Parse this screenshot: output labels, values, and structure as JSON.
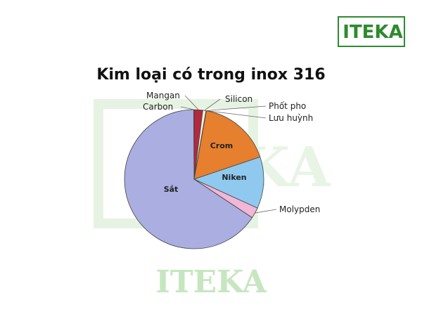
{
  "brand": {
    "logo_text": "ITEKA",
    "logo_color": "#2e8b2e",
    "watermark_text": "ITEKA",
    "watermark_color": "#c6e6c0"
  },
  "chart_data": {
    "type": "pie",
    "title": "Kim loại có trong inox 316",
    "start": "top, clockwise",
    "slices": [
      {
        "label": "Mangan",
        "value": 2.0,
        "color": "#b5283f"
      },
      {
        "label": "Silicon",
        "value": 0.75,
        "color": "#f2f2d8"
      },
      {
        "label": "Phốt pho",
        "value": 0.045,
        "color": "#d9d9a0"
      },
      {
        "label": "Lưu huỳnh",
        "value": 0.03,
        "color": "#c8c8c8"
      },
      {
        "label": "Crom",
        "value": 17.0,
        "color": "#e67f2e"
      },
      {
        "label": "Niken",
        "value": 12.0,
        "color": "#8fc9ef"
      },
      {
        "label": "Molypden",
        "value": 2.5,
        "color": "#f2b6d6"
      },
      {
        "label": "Sắt",
        "value": 65.595,
        "color": "#aaaee0"
      },
      {
        "label": "Carbon",
        "value": 0.08,
        "color": "#3a3a3a"
      }
    ]
  }
}
